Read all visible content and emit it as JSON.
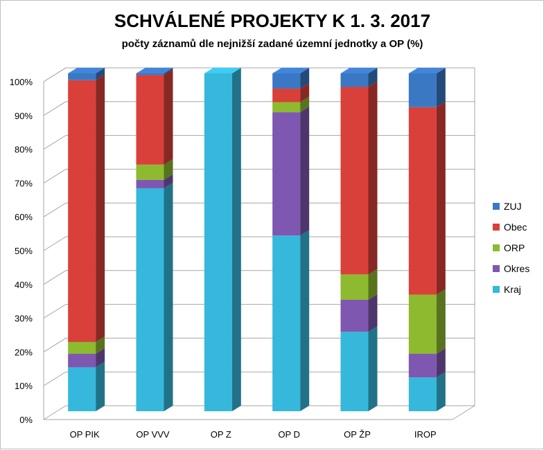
{
  "chart_data": {
    "type": "bar",
    "stacked": true,
    "percent": true,
    "title": "SCHVÁLENÉ PROJEKTY K 1. 3. 2017",
    "subtitle": "počty záznamů dle nejnižší zadané územní jednotky a OP (%)",
    "xlabel": "",
    "ylabel": "",
    "ylim": [
      0,
      100
    ],
    "yticks": [
      "0%",
      "10%",
      "20%",
      "30%",
      "40%",
      "50%",
      "60%",
      "70%",
      "80%",
      "90%",
      "100%"
    ],
    "categories": [
      "OP PIK",
      "OP VVV",
      "OP Z",
      "OP D",
      "OP ŽP",
      "IROP"
    ],
    "grid": true,
    "legend": "right",
    "series": [
      {
        "name": "Kraj",
        "color": "#35B8DB",
        "values": [
          13,
          66,
          100,
          52,
          23.5,
          10
        ]
      },
      {
        "name": "Okres",
        "color": "#7E57B0",
        "values": [
          4,
          2.5,
          0,
          36.5,
          9.5,
          7
        ]
      },
      {
        "name": "ORP",
        "color": "#8DBA2E",
        "values": [
          3.5,
          4.5,
          0,
          3,
          7.5,
          17.5
        ]
      },
      {
        "name": "Obec",
        "color": "#D9403A",
        "values": [
          77.5,
          26.5,
          0,
          4,
          55.5,
          55.5
        ]
      },
      {
        "name": "ZUJ",
        "color": "#3A78C4",
        "values": [
          2,
          0.5,
          0,
          4.5,
          4,
          10
        ]
      }
    ]
  }
}
